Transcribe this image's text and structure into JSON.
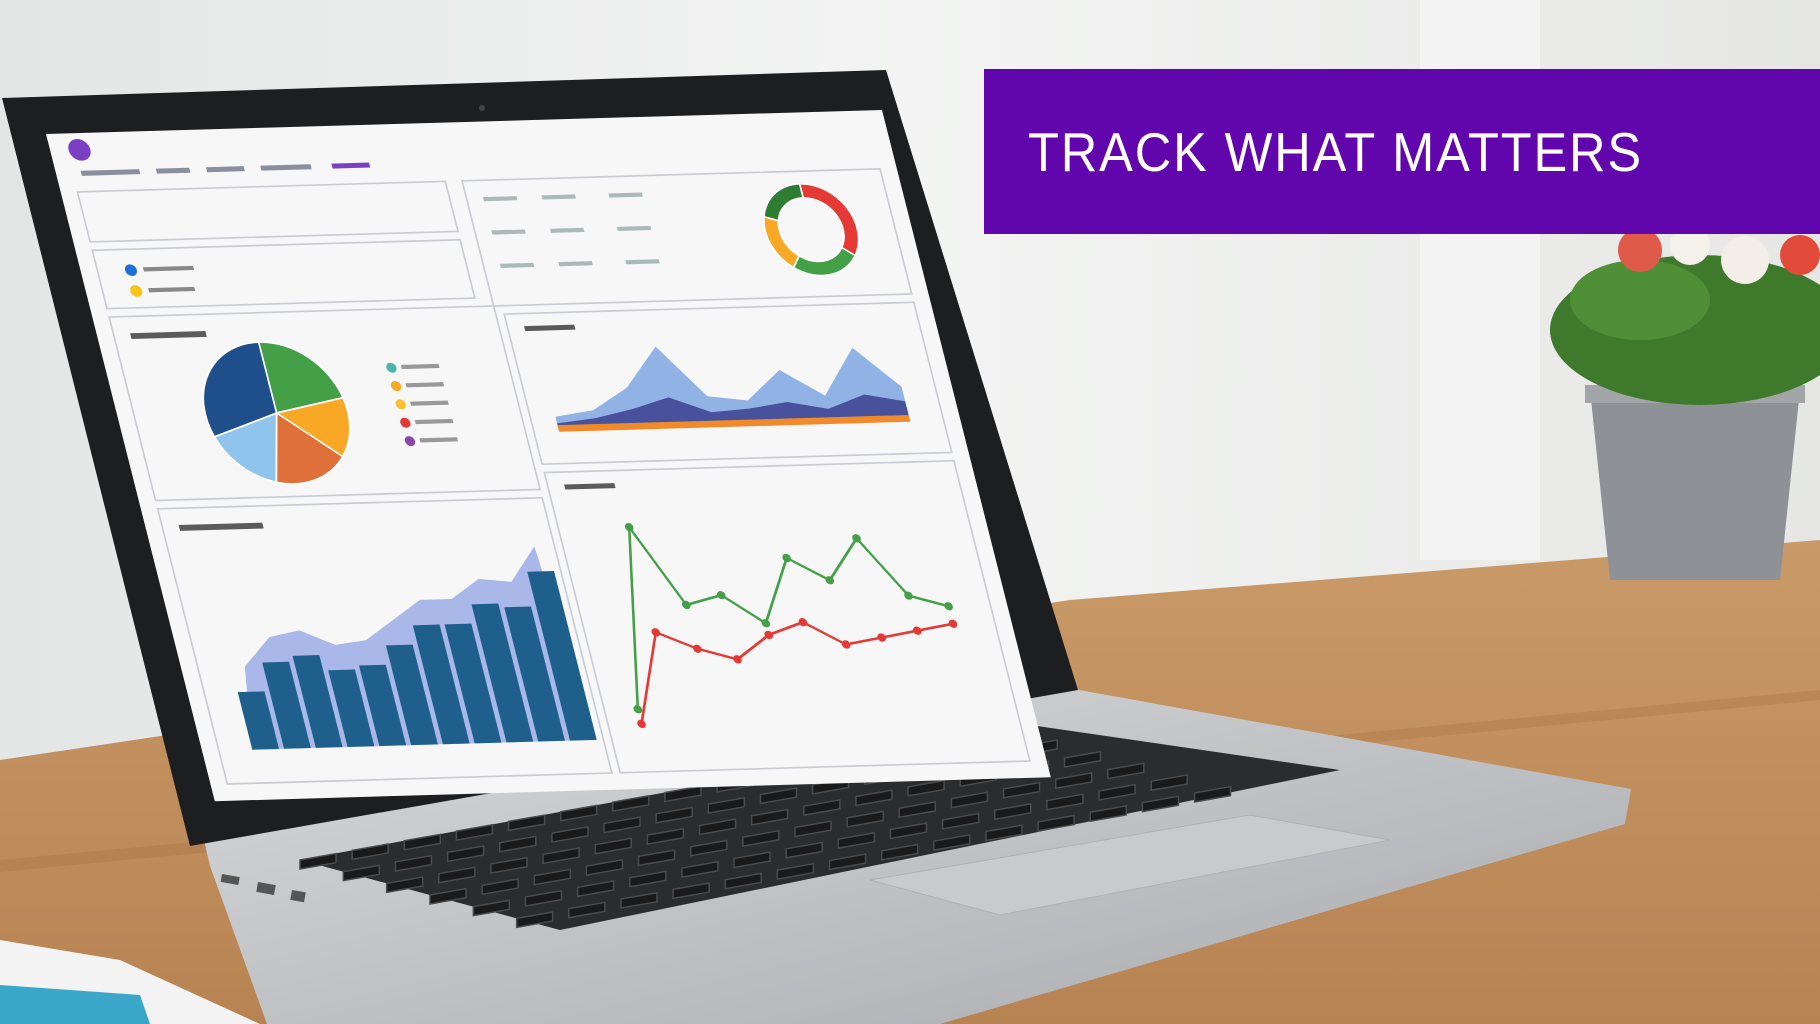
{
  "banner": {
    "title": "TRACK WHAT MATTERS",
    "color": "#6106ad"
  },
  "screen": {
    "accent": "#7b3fc4",
    "pie": {
      "values": [
        22,
        14,
        18,
        16,
        30
      ],
      "colors": [
        "#43a047",
        "#f9a825",
        "#e0703a",
        "#90c4ec",
        "#1f4f8a"
      ]
    },
    "legend_colors": [
      "#4db6ac",
      "#f9a825",
      "#fbc02d",
      "#e53935",
      "#8e44ad"
    ],
    "donut": {
      "values": [
        35,
        25,
        20,
        20
      ],
      "colors": [
        "#e53935",
        "#43a047",
        "#f9a825",
        "#2e7d32"
      ]
    },
    "bars": {
      "values": [
        30,
        45,
        48,
        40,
        42,
        52,
        62,
        62,
        72,
        70,
        88
      ]
    },
    "area": {
      "series": [
        [
          10,
          14,
          30,
          60,
          22,
          18,
          40,
          20,
          55,
          25
        ],
        [
          5,
          8,
          14,
          22,
          10,
          12,
          16,
          10,
          20,
          14
        ]
      ]
    },
    "lines": {
      "series": [
        {
          "color": "#43a047",
          "values": [
            10,
            72,
            45,
            48,
            38,
            60,
            52,
            66,
            46,
            42
          ]
        },
        {
          "color": "#e53935",
          "values": [
            5,
            36,
            30,
            26,
            34,
            38,
            30,
            32,
            34,
            36
          ]
        }
      ]
    }
  }
}
